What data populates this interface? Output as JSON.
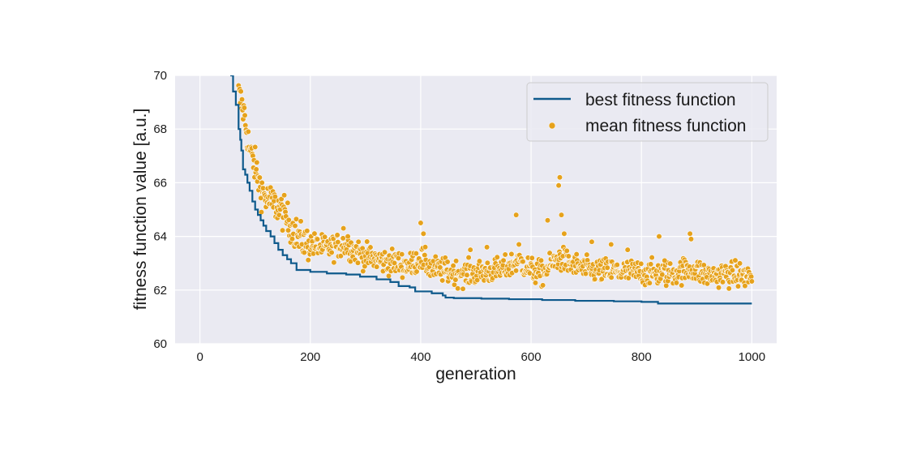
{
  "chart_data": {
    "type": "line",
    "title": "",
    "xlabel": "generation",
    "ylabel": "fitness function value [a.u.]",
    "xlim": [
      -45,
      1045
    ],
    "ylim": [
      60,
      70
    ],
    "x_ticks": [
      0,
      200,
      400,
      600,
      800,
      1000
    ],
    "y_ticks": [
      60,
      62,
      64,
      66,
      68,
      70
    ],
    "grid": true,
    "legend_position": "top-right",
    "colors": {
      "background": "#eaeaf2",
      "grid": "#ffffff",
      "best": "#0f5a8c",
      "mean": "#e6a21c",
      "mean_edge": "#ffffff"
    },
    "series": [
      {
        "name": "best fitness function",
        "kind": "step-line",
        "points": [
          [
            55,
            70.0
          ],
          [
            60,
            69.4
          ],
          [
            65,
            68.9
          ],
          [
            70,
            68.0
          ],
          [
            73,
            67.6
          ],
          [
            75,
            67.2
          ],
          [
            78,
            66.5
          ],
          [
            82,
            66.3
          ],
          [
            86,
            66.0
          ],
          [
            90,
            65.7
          ],
          [
            95,
            65.3
          ],
          [
            100,
            65.0
          ],
          [
            105,
            64.8
          ],
          [
            110,
            64.6
          ],
          [
            115,
            64.4
          ],
          [
            120,
            64.2
          ],
          [
            128,
            64.0
          ],
          [
            135,
            63.75
          ],
          [
            142,
            63.5
          ],
          [
            150,
            63.3
          ],
          [
            158,
            63.15
          ],
          [
            165,
            63.0
          ],
          [
            175,
            62.75
          ],
          [
            200,
            62.68
          ],
          [
            230,
            62.62
          ],
          [
            265,
            62.58
          ],
          [
            290,
            62.5
          ],
          [
            320,
            62.4
          ],
          [
            345,
            62.3
          ],
          [
            360,
            62.15
          ],
          [
            380,
            62.1
          ],
          [
            390,
            61.95
          ],
          [
            420,
            61.88
          ],
          [
            440,
            61.8
          ],
          [
            445,
            61.72
          ],
          [
            460,
            61.7
          ],
          [
            510,
            61.68
          ],
          [
            560,
            61.66
          ],
          [
            620,
            61.63
          ],
          [
            680,
            61.6
          ],
          [
            750,
            61.58
          ],
          [
            800,
            61.56
          ],
          [
            825,
            61.56
          ],
          [
            830,
            61.5
          ],
          [
            1000,
            61.5
          ]
        ]
      },
      {
        "name": "mean fitness function",
        "kind": "scatter",
        "anchors": [
          [
            70,
            69.3
          ],
          [
            80,
            68.6
          ],
          [
            90,
            67.2
          ],
          [
            100,
            66.6
          ],
          [
            110,
            65.8
          ],
          [
            120,
            65.4
          ],
          [
            135,
            65.2
          ],
          [
            150,
            64.9
          ],
          [
            165,
            64.4
          ],
          [
            180,
            63.9
          ],
          [
            200,
            63.7
          ],
          [
            230,
            63.55
          ],
          [
            260,
            63.7
          ],
          [
            280,
            63.5
          ],
          [
            300,
            63.25
          ],
          [
            330,
            63.1
          ],
          [
            360,
            63.0
          ],
          [
            380,
            62.9
          ],
          [
            400,
            63.2
          ],
          [
            420,
            62.8
          ],
          [
            450,
            62.7
          ],
          [
            480,
            62.6
          ],
          [
            520,
            62.7
          ],
          [
            550,
            62.75
          ],
          [
            575,
            63.1
          ],
          [
            600,
            62.75
          ],
          [
            620,
            62.6
          ],
          [
            650,
            63.2
          ],
          [
            670,
            63.0
          ],
          [
            700,
            62.75
          ],
          [
            750,
            62.7
          ],
          [
            800,
            62.65
          ],
          [
            850,
            62.6
          ],
          [
            890,
            62.8
          ],
          [
            920,
            62.55
          ],
          [
            960,
            62.6
          ],
          [
            1000,
            62.5
          ]
        ],
        "spikes": [
          [
            400,
            64.5
          ],
          [
            573,
            64.8
          ],
          [
            578,
            63.7
          ],
          [
            630,
            64.6
          ],
          [
            652,
            66.2
          ],
          [
            650,
            65.9
          ],
          [
            655,
            64.8
          ],
          [
            660,
            64.1
          ],
          [
            832,
            64.0
          ],
          [
            888,
            64.1
          ],
          [
            890,
            63.9
          ],
          [
            842,
            63.1
          ],
          [
            775,
            63.5
          ],
          [
            745,
            63.7
          ],
          [
            520,
            63.6
          ],
          [
            490,
            63.5
          ],
          [
            710,
            63.8
          ],
          [
            260,
            64.3
          ],
          [
            268,
            64.0
          ],
          [
            405,
            64.1
          ]
        ],
        "jitter": 0.4,
        "count": 900
      }
    ]
  }
}
